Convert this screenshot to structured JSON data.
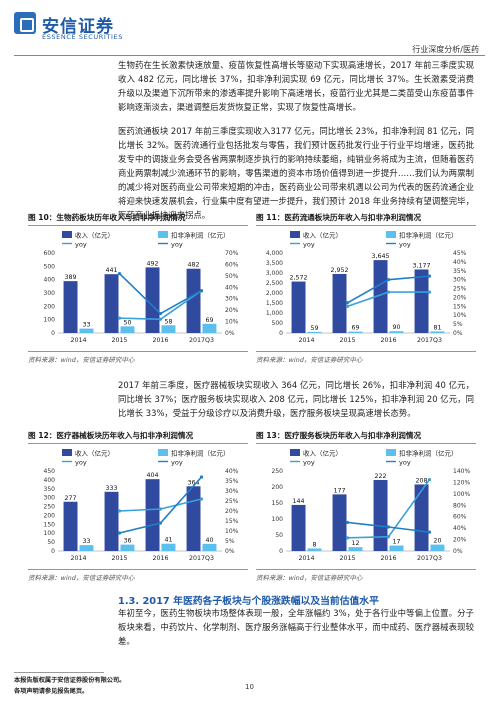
{
  "header": {
    "logo_cn": "安信证券",
    "logo_en": "ESSENCE SECURITIES",
    "tag": "行业深度分析/医药"
  },
  "paragraphs": [
    "生物药在生长激素快速放量、疫苗恢复性高增长等驱动下实现高速增长，2017 年前三季度实现收入 482 亿元，同比增长 37%，扣非净利润实现 69 亿元，同比增长 37%。生长激素受消费升级以及渠道下沉所带来的渗透率提升影响下高速增长，疫苗行业尤其是二类苗受山东疫苗事件影响逐渐淡去，渠道调整后发货恢复正常，实现了恢复性高增长。",
    "医药流通板块 2017 年前三季度实现收入3177 亿元，同比增长 23%，扣非净利润 81 亿元，同比增长 32%。医药流通行业包括批发与零售，我们预计医药批发行业于行业平均增速，医药批发专中的调拨业务会受各省两票制逐步执行的影响持续萎缩，纯销业务将成为主流，但随着医药商业两票制减少流通环节的影响，零售渠道的资本市场价值得到进一步提升……我们认为两票制的减少将对医药商业公司带来短期的冲击，医药商业公司带来机遇以公司为代表的医药流通企业将迎来快速发展机会，行业集中度有望进一步提升，我们预计 2018 年业务持续有望调整完毕，医药商业板块迎来拐点。",
    "2017 年前三季度，医疗器械板块实现收入 364 亿元，同比增长 26%，扣非净利润 40 亿元，同比增长 37%；医疗服务板块实现收入 208 亿元，同比增长 125%，扣非净利润 20 亿元，同比增长 33%，受益于分级诊疗以及消费升级，医疗服务板块呈现高速增长态势。",
    "年初至今，医药生物板块市场整体表现一般，全年涨幅约 3%，处于各行业中等偏上位置。分子板块来看，中药饮片、化学制剂、医疗服务涨幅高于行业整体水平，而中成药、医疗器械表现较差。"
  ],
  "figures": [
    {
      "title": "图 10：生物药板块历年收入与扣非净利润情况",
      "source": "资料来源：wind，安信证券研究中心",
      "chart_data": {
        "type": "bar",
        "categories": [
          "2014",
          "2015",
          "2016",
          "2017Q3"
        ],
        "series": [
          {
            "name": "收入（亿元）",
            "values": [
              389,
              441,
              492,
              482
            ],
            "color": "#2f4a9e"
          },
          {
            "name": "扣非净利润（亿元）",
            "values": [
              33,
              50,
              58,
              69
            ],
            "color": "#5bc0ee"
          },
          {
            "name": "yoy",
            "values": [
              null,
              13,
              12,
              37
            ],
            "color": "#3aa0dc",
            "axis": "right"
          },
          {
            "name": "yoy",
            "values": [
              null,
              52,
              17,
              37
            ],
            "color": "#1f7fc8",
            "axis": "right"
          }
        ],
        "ylim_left": [
          0,
          600
        ],
        "ylim_right": [
          0,
          70
        ],
        "yticks_left": [
          "0",
          "100",
          "200",
          "300",
          "400",
          "500",
          "600"
        ],
        "yticks_right": [
          "0%",
          "10%",
          "20%",
          "30%",
          "40%",
          "50%",
          "60%",
          "70%"
        ],
        "yoy_labels": [
          "13%",
          "52%",
          "17%",
          "12%",
          "37%"
        ],
        "legend": "top"
      }
    },
    {
      "title": "图 11：医药流通板块历年收入与扣非净利润情况",
      "source": "资料来源：wind，安信证券研究中心",
      "chart_data": {
        "type": "bar",
        "categories": [
          "2014",
          "2015",
          "2016",
          "2017Q3"
        ],
        "series": [
          {
            "name": "收入（亿元）",
            "values": [
              2572,
              2952,
              3645,
              3177
            ],
            "color": "#2f4a9e"
          },
          {
            "name": "扣非净利润（亿元）",
            "values": [
              59,
              69,
              90,
              81
            ],
            "color": "#5bc0ee"
          },
          {
            "name": "yoy",
            "values": [
              null,
              15,
              23,
              23
            ],
            "color": "#3aa0dc",
            "axis": "right"
          },
          {
            "name": "yoy",
            "values": [
              null,
              17,
              30,
              32
            ],
            "color": "#1f7fc8",
            "axis": "right"
          }
        ],
        "ylim_left": [
          0,
          4000
        ],
        "ylim_right": [
          0,
          45
        ],
        "yticks_left": [
          "0",
          "500",
          "1,000",
          "1,500",
          "2,000",
          "2,500",
          "3,000",
          "3,500",
          "4,000"
        ],
        "yticks_right": [
          "0%",
          "5%",
          "10%",
          "15%",
          "20%",
          "25%",
          "30%",
          "35%",
          "40%",
          "45%"
        ],
        "yoy_labels": [
          "15%",
          "17%",
          "23%",
          "30%",
          "32%"
        ],
        "legend": "top"
      }
    },
    {
      "title": "图 12：医疗器械板块历年收入与扣非净利润情况",
      "source": "资料来源：wind，安信证券研究中心",
      "chart_data": {
        "type": "bar",
        "categories": [
          "2014",
          "2015",
          "2016",
          "2017Q3"
        ],
        "series": [
          {
            "name": "收入（亿元）",
            "values": [
              277,
              333,
              404,
              364
            ],
            "color": "#2f4a9e"
          },
          {
            "name": "扣非净利润（亿元）",
            "values": [
              33,
              36,
              41,
              40
            ],
            "color": "#5bc0ee"
          },
          {
            "name": "yoy",
            "values": [
              null,
              20,
              21,
              26
            ],
            "color": "#3aa0dc",
            "axis": "right"
          },
          {
            "name": "yoy",
            "values": [
              null,
              9,
              14,
              37
            ],
            "color": "#1f7fc8",
            "axis": "right"
          }
        ],
        "ylim_left": [
          0,
          450
        ],
        "ylim_right": [
          0,
          40
        ],
        "yticks_left": [
          "0",
          "50",
          "100",
          "150",
          "200",
          "250",
          "300",
          "350",
          "400",
          "450"
        ],
        "yticks_right": [
          "0%",
          "5%",
          "10%",
          "15%",
          "20%",
          "25%",
          "30%",
          "35%",
          "40%"
        ],
        "yoy_labels": [
          "37%",
          "26%"
        ],
        "legend": "top"
      }
    },
    {
      "title": "图 13：医疗服务板块历年收入与扣非净利润情况",
      "source": "资料来源：wind，安信证券研究中心",
      "chart_data": {
        "type": "bar",
        "categories": [
          "2014",
          "2015",
          "2016",
          "2017Q3"
        ],
        "series": [
          {
            "name": "收入（亿元）",
            "values": [
              144,
              177,
              222,
              208
            ],
            "color": "#2f4a9e"
          },
          {
            "name": "扣非净利润（亿元）",
            "values": [
              8,
              12,
              17,
              20
            ],
            "color": "#5bc0ee"
          },
          {
            "name": "yoy",
            "values": [
              null,
              23,
              25,
              125
            ],
            "color": "#3aa0dc",
            "axis": "right"
          },
          {
            "name": "yoy",
            "values": [
              null,
              50,
              42,
              33
            ],
            "color": "#1f7fc8",
            "axis": "right"
          }
        ],
        "ylim_left": [
          0,
          250
        ],
        "ylim_right": [
          0,
          140
        ],
        "yticks_left": [
          "0",
          "50",
          "100",
          "150",
          "200",
          "250"
        ],
        "yticks_right": [
          "0%",
          "20%",
          "40%",
          "60%",
          "80%",
          "100%",
          "120%",
          "140%"
        ],
        "yoy_labels": [
          "125%",
          "33%"
        ],
        "legend": "top"
      }
    }
  ],
  "section": {
    "title": "1.3. 2017 年医药各子板块与个股涨跌幅以及当前估值水平"
  },
  "footer": {
    "page_number": "10",
    "line1": "本报告版权属于安信证券股份有限公司。",
    "line2": "各项声明请参见报告尾页。"
  }
}
